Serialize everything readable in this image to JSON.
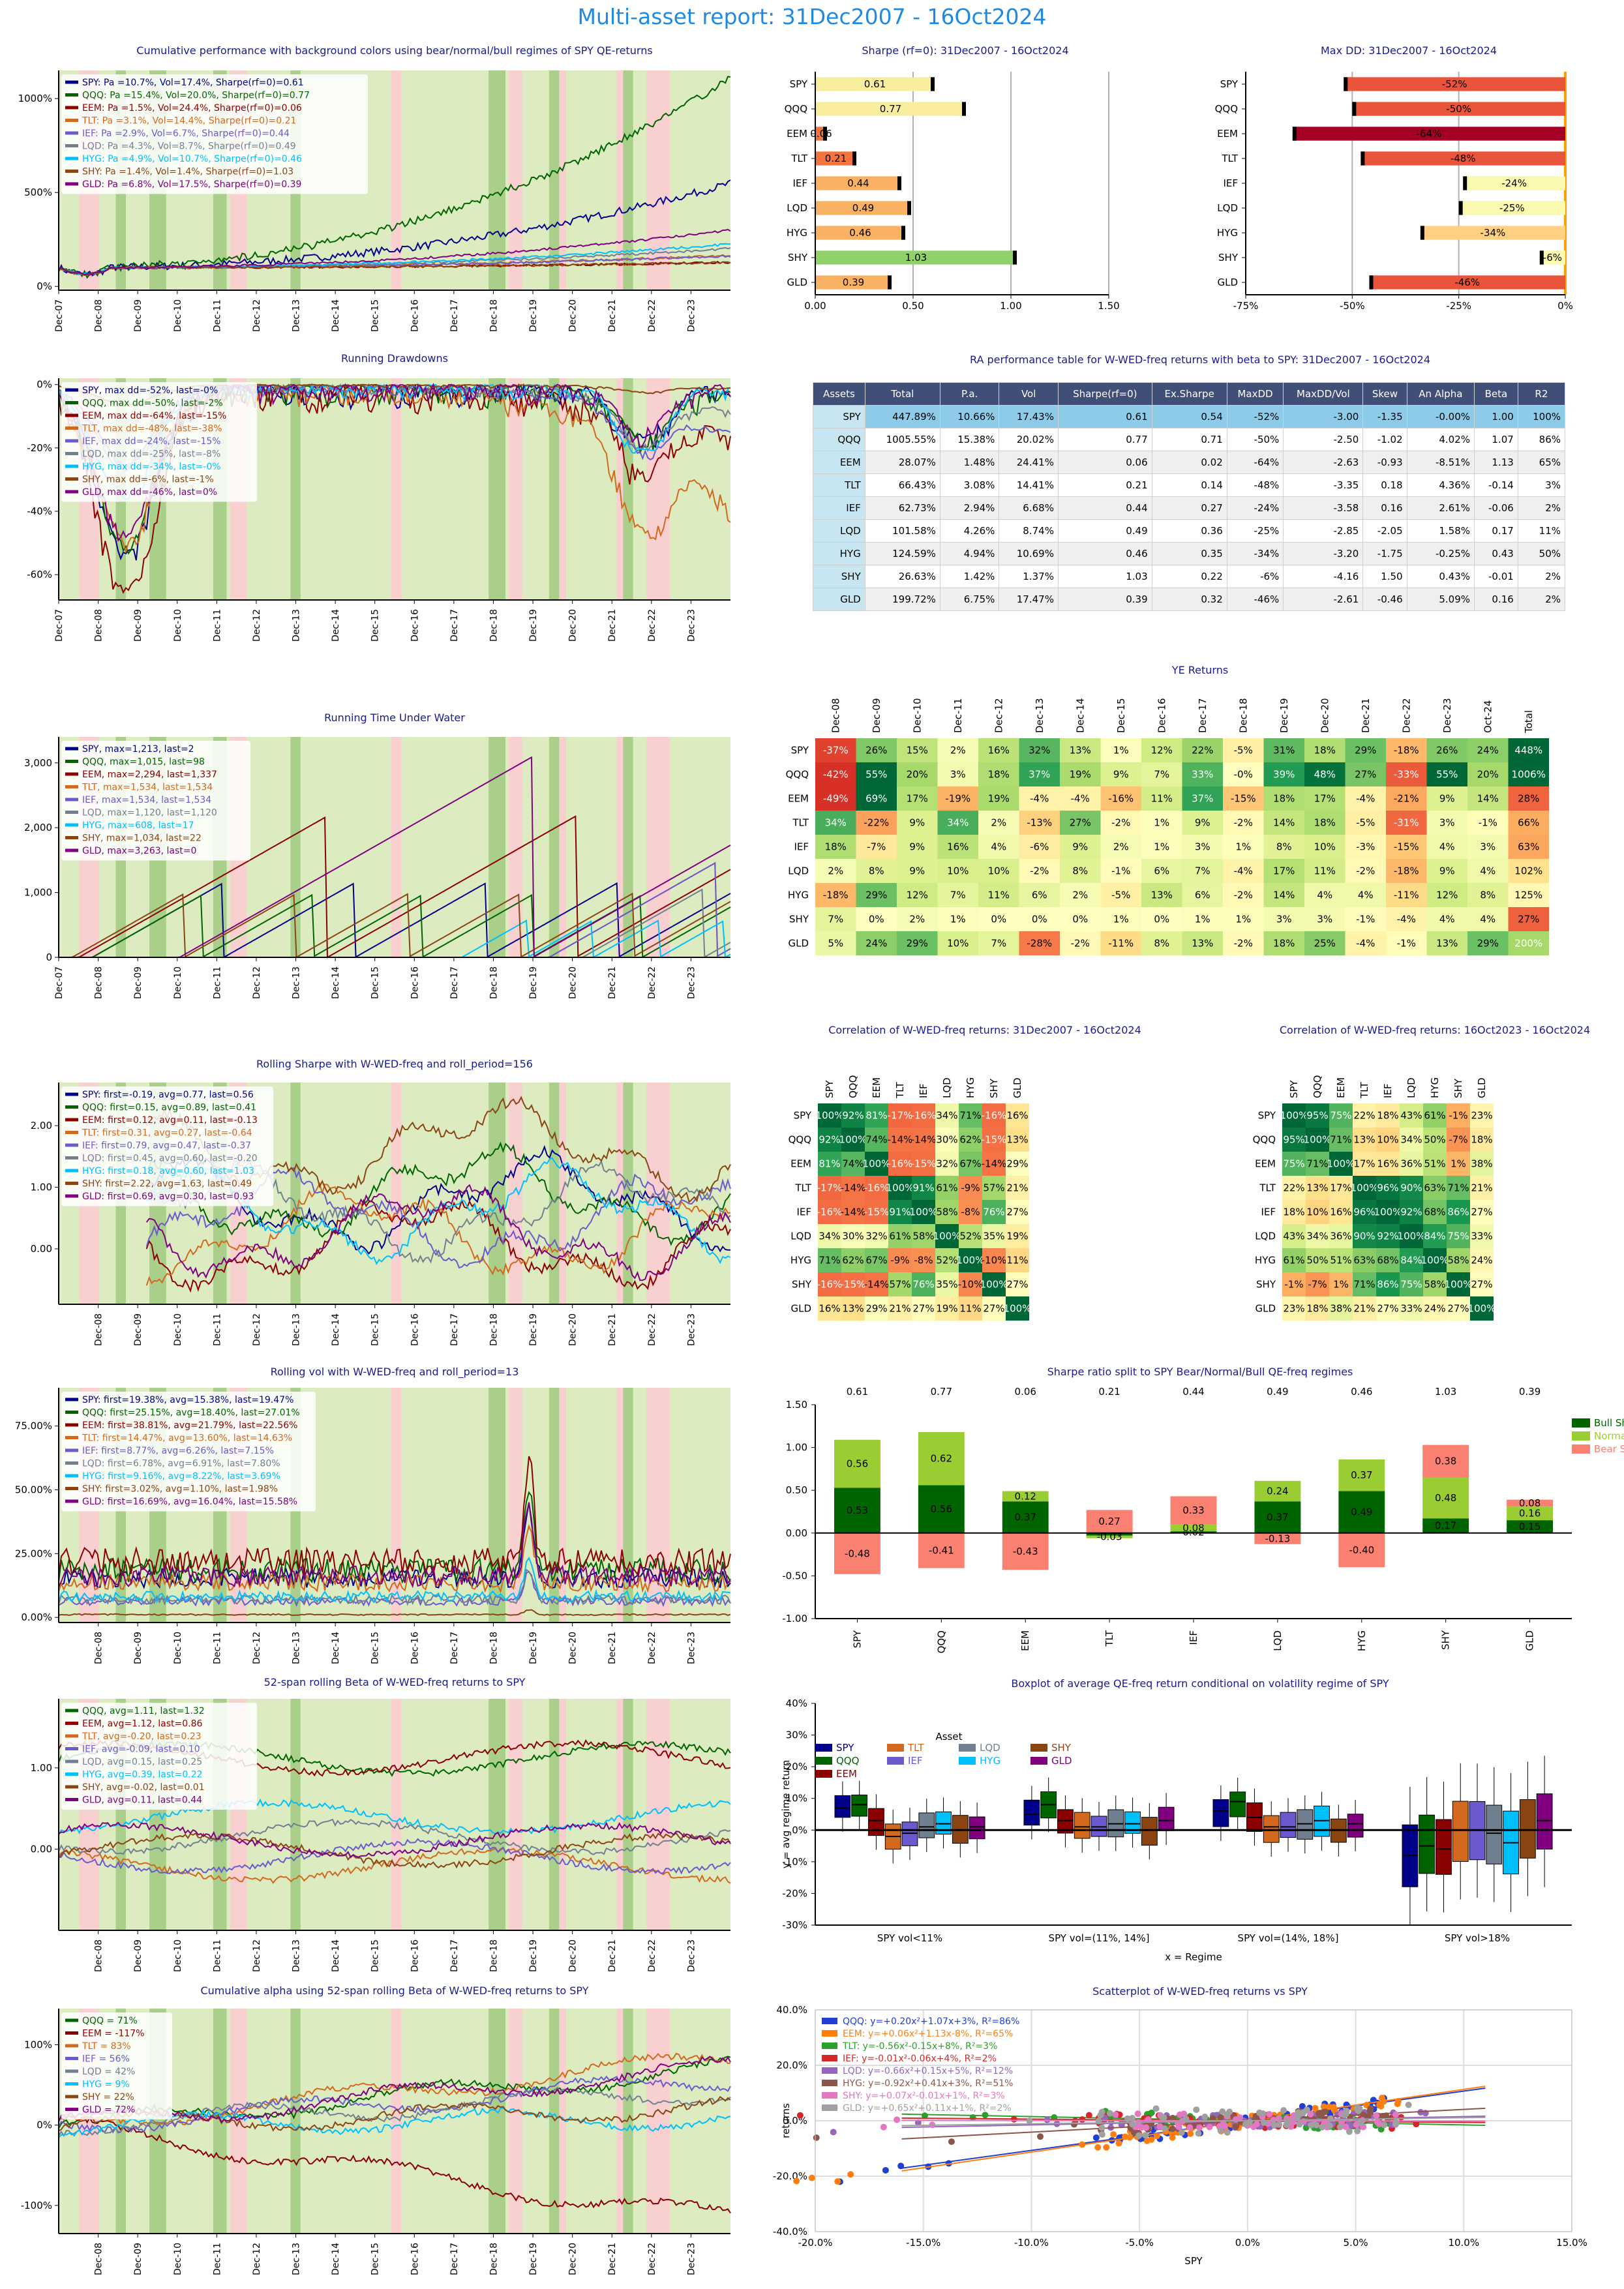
{
  "page_title": "Multi-asset report: 31Dec2007 - 16Oct2024",
  "assets": [
    "SPY",
    "QQQ",
    "EEM",
    "TLT",
    "IEF",
    "LQD",
    "HYG",
    "SHY",
    "GLD"
  ],
  "colors": {
    "SPY": "#00008b",
    "QQQ": "#006400",
    "EEM": "#8b0000",
    "TLT": "#d2691e",
    "IEF": "#6a5acd",
    "LQD": "#708090",
    "HYG": "#00bfff",
    "SHY": "#8b4513",
    "GLD": "#800080"
  },
  "regime_colors": {
    "bull": "#a9cf8a",
    "normal": "#dcecc0",
    "bear": "#f9d0d0"
  },
  "years": [
    "Dec-07",
    "Dec-08",
    "Dec-09",
    "Dec-10",
    "Dec-11",
    "Dec-12",
    "Dec-13",
    "Dec-14",
    "Dec-15",
    "Dec-16",
    "Dec-17",
    "Dec-18",
    "Dec-19",
    "Dec-20",
    "Dec-21",
    "Dec-22",
    "Dec-23"
  ],
  "chart_data": [
    {
      "id": "cumperf",
      "type": "line",
      "title": "Cumulative performance with background colors using bear/normal/bull regimes of SPY QE-returns",
      "yticks": [
        "0%",
        "500%",
        "1000%"
      ],
      "ylim": [
        -20,
        1150
      ],
      "legend": [
        "SPY: Pa =10.7%, Vol=17.4%, Sharpe(rf=0)=0.61",
        "QQQ: Pa =15.4%, Vol=20.0%, Sharpe(rf=0)=0.77",
        "EEM: Pa =1.5%, Vol=24.4%, Sharpe(rf=0)=0.06",
        "TLT: Pa =3.1%, Vol=14.4%, Sharpe(rf=0)=0.21",
        "IEF: Pa =2.9%, Vol=6.7%, Sharpe(rf=0)=0.44",
        "LQD: Pa =4.3%, Vol=8.7%, Sharpe(rf=0)=0.49",
        "HYG: Pa =4.9%, Vol=10.7%, Sharpe(rf=0)=0.46",
        "SHY: Pa =1.4%, Vol=1.4%, Sharpe(rf=0)=1.03",
        "GLD: Pa =6.8%, Vol=17.5%, Sharpe(rf=0)=0.39"
      ],
      "final": [
        548,
        1106,
        128,
        166,
        163,
        202,
        225,
        127,
        300
      ]
    },
    {
      "id": "sharpe",
      "type": "bar",
      "title": "Sharpe (rf=0): 31Dec2007 - 16Oct2024",
      "values": [
        0.61,
        0.77,
        0.06,
        0.21,
        0.44,
        0.49,
        0.46,
        1.03,
        0.39
      ],
      "labels": [
        "0.61",
        "0.77",
        "0.06",
        "0.21",
        "0.44",
        "0.49",
        "0.46",
        "1.03",
        "0.39"
      ],
      "xticks": [
        "0.00",
        "0.50",
        "1.00",
        "1.50"
      ],
      "xlim": [
        0,
        1.5
      ]
    },
    {
      "id": "maxdd",
      "type": "bar",
      "title": "Max DD: 31Dec2007 - 16Oct2024",
      "values": [
        -52,
        -50,
        -64,
        -48,
        -24,
        -25,
        -34,
        -6,
        -46
      ],
      "labels": [
        "-52%",
        "-50%",
        "-64%",
        "-48%",
        "-24%",
        "-25%",
        "-34%",
        "-6%",
        "-46%"
      ],
      "xticks": [
        "-75%",
        "-50%",
        "-25%",
        "0%"
      ],
      "xlim": [
        -75,
        0
      ]
    },
    {
      "id": "drawdowns",
      "type": "line",
      "title": "Running Drawdowns",
      "yticks": [
        "0%",
        "-20%",
        "-40%",
        "-60%"
      ],
      "ylim": [
        -68,
        2
      ],
      "legend": [
        "SPY, max dd=-52%, last=-0%",
        "QQQ, max dd=-50%, last=-2%",
        "EEM, max dd=-64%, last=-15%",
        "TLT, max dd=-48%, last=-38%",
        "IEF, max dd=-24%, last=-15%",
        "LQD, max dd=-25%, last=-8%",
        "HYG, max dd=-34%, last=-0%",
        "SHY, max dd=-6%, last=-1%",
        "GLD, max dd=-46%, last=0%"
      ],
      "maxdd": [
        -52,
        -50,
        -64,
        -48,
        -24,
        -25,
        -34,
        -6,
        -46
      ],
      "last": [
        0,
        -2,
        -15,
        -38,
        -15,
        -8,
        0,
        -1,
        0
      ]
    },
    {
      "id": "tuw",
      "type": "line",
      "title": "Running Time Under Water",
      "yticks": [
        "0",
        "1,000",
        "2,000",
        "3,000"
      ],
      "ylim": [
        0,
        3400
      ],
      "legend": [
        "SPY, max=1,213, last=2",
        "QQQ, max=1,015, last=98",
        "EEM, max=2,294, last=1,337",
        "TLT, max=1,534, last=1,534",
        "IEF, max=1,534, last=1,534",
        "LQD, max=1,120, last=1,120",
        "HYG, max=608, last=17",
        "SHY, max=1,034, last=22",
        "GLD, max=3,263, last=0"
      ]
    },
    {
      "id": "rollsharpe",
      "type": "line",
      "title": "Rolling Sharpe with W-WED-freq and roll_period=156",
      "yticks": [
        "0.00",
        "1.00",
        "2.00"
      ],
      "ylim": [
        -0.9,
        2.7
      ],
      "legend": [
        "SPY: first=-0.19, avg=0.77, last=0.56",
        "QQQ: first=0.15, avg=0.89, last=0.41",
        "EEM: first=0.12, avg=0.11, last=-0.13",
        "TLT: first=0.31, avg=0.27, last=-0.64",
        "IEF: first=0.79, avg=0.47, last=-0.37",
        "LQD: first=0.45, avg=0.60, last=-0.20",
        "HYG: first=0.18, avg=0.60, last=1.03",
        "SHY: first=2.22, avg=1.63, last=0.49",
        "GLD: first=0.69, avg=0.30, last=0.93"
      ]
    },
    {
      "id": "rollvol",
      "type": "line",
      "title": "Rolling vol with W-WED-freq and roll_period=13",
      "yticks": [
        "0.00%",
        "25.00%",
        "50.00%",
        "75.00%"
      ],
      "ylim": [
        -2,
        90
      ],
      "legend": [
        "SPY: first=19.38%, avg=15.38%, last=19.47%",
        "QQQ: first=25.15%, avg=18.40%, last=27.01%",
        "EEM: first=38.81%, avg=21.79%, last=22.56%",
        "TLT: first=14.47%, avg=13.60%, last=14.63%",
        "IEF: first=8.77%, avg=6.26%, last=7.15%",
        "LQD: first=6.78%, avg=6.91%, last=7.80%",
        "HYG: first=9.16%, avg=8.22%, last=3.69%",
        "SHY: first=3.02%, avg=1.10%, last=1.98%",
        "GLD: first=16.69%, avg=16.04%, last=15.58%"
      ]
    },
    {
      "id": "rollbeta",
      "type": "line",
      "title": "52-span rolling Beta of W-WED-freq returns to SPY",
      "yticks": [
        "0.00",
        "1.00"
      ],
      "ylim": [
        -1.0,
        1.85
      ],
      "legend": [
        "QQQ, avg=1.11, last=1.32",
        "EEM, avg=1.12, last=0.86",
        "TLT, avg=-0.20, last=0.23",
        "IEF, avg=-0.09, last=0.10",
        "LQD, avg=0.15, last=0.25",
        "HYG, avg=0.39, last=0.22",
        "SHY, avg=-0.02, last=0.01",
        "GLD, avg=0.11, last=0.44"
      ]
    },
    {
      "id": "cumalpha",
      "type": "line",
      "title": "Cumulative alpha using 52-span rolling Beta of W-WED-freq returns to SPY",
      "yticks": [
        "-100%",
        "0%",
        "100%"
      ],
      "ylim": [
        -135,
        145
      ],
      "legend": [
        "QQQ = 71%",
        "EEM = -117%",
        "TLT = 83%",
        "IEF = 56%",
        "LQD = 42%",
        "HYG = 9%",
        "SHY = 22%",
        "GLD = 72%"
      ]
    },
    {
      "id": "ye",
      "type": "heatmap",
      "title": "YE Returns",
      "cols": [
        "Dec-08",
        "Dec-09",
        "Dec-10",
        "Dec-11",
        "Dec-12",
        "Dec-13",
        "Dec-14",
        "Dec-15",
        "Dec-16",
        "Dec-17",
        "Dec-18",
        "Dec-19",
        "Dec-20",
        "Dec-21",
        "Dec-22",
        "Dec-23",
        "Oct-24",
        "Total"
      ],
      "rows": [
        [
          "-37%",
          "26%",
          "15%",
          "2%",
          "16%",
          "32%",
          "13%",
          "1%",
          "12%",
          "22%",
          "-5%",
          "31%",
          "18%",
          "29%",
          "-18%",
          "26%",
          "24%",
          "448%"
        ],
        [
          "-42%",
          "55%",
          "20%",
          "3%",
          "18%",
          "37%",
          "19%",
          "9%",
          "7%",
          "33%",
          "-0%",
          "39%",
          "48%",
          "27%",
          "-33%",
          "55%",
          "20%",
          "1006%"
        ],
        [
          "-49%",
          "69%",
          "17%",
          "-19%",
          "19%",
          "-4%",
          "-4%",
          "-16%",
          "11%",
          "37%",
          "-15%",
          "18%",
          "17%",
          "-4%",
          "-21%",
          "9%",
          "14%",
          "28%"
        ],
        [
          "34%",
          "-22%",
          "9%",
          "34%",
          "2%",
          "-13%",
          "27%",
          "-2%",
          "1%",
          "9%",
          "-2%",
          "14%",
          "18%",
          "-5%",
          "-31%",
          "3%",
          "-1%",
          "66%"
        ],
        [
          "18%",
          "-7%",
          "9%",
          "16%",
          "4%",
          "-6%",
          "9%",
          "2%",
          "1%",
          "3%",
          "1%",
          "8%",
          "10%",
          "-3%",
          "-15%",
          "4%",
          "3%",
          "63%"
        ],
        [
          "2%",
          "8%",
          "9%",
          "10%",
          "10%",
          "-2%",
          "8%",
          "-1%",
          "6%",
          "7%",
          "-4%",
          "17%",
          "11%",
          "-2%",
          "-18%",
          "9%",
          "4%",
          "102%"
        ],
        [
          "-18%",
          "29%",
          "12%",
          "7%",
          "11%",
          "6%",
          "2%",
          "-5%",
          "13%",
          "6%",
          "-2%",
          "14%",
          "4%",
          "4%",
          "-11%",
          "12%",
          "8%",
          "125%"
        ],
        [
          "7%",
          "0%",
          "2%",
          "1%",
          "0%",
          "0%",
          "0%",
          "1%",
          "0%",
          "1%",
          "1%",
          "3%",
          "3%",
          "-1%",
          "-4%",
          "4%",
          "4%",
          "27%"
        ],
        [
          "5%",
          "24%",
          "29%",
          "10%",
          "7%",
          "-28%",
          "-2%",
          "-11%",
          "8%",
          "13%",
          "-2%",
          "18%",
          "25%",
          "-4%",
          "-1%",
          "13%",
          "29%",
          "200%"
        ]
      ]
    },
    {
      "id": "corr1",
      "type": "heatmap",
      "title": "Correlation of W-WED-freq returns: 31Dec2007 - 16Oct2024",
      "rows": [
        [
          "100%",
          "92%",
          "81%",
          "-17%",
          "-16%",
          "34%",
          "71%",
          "-16%",
          "16%"
        ],
        [
          "92%",
          "100%",
          "74%",
          "-14%",
          "-14%",
          "30%",
          "62%",
          "-15%",
          "13%"
        ],
        [
          "81%",
          "74%",
          "100%",
          "-16%",
          "-15%",
          "32%",
          "67%",
          "-14%",
          "29%"
        ],
        [
          "-17%",
          "-14%",
          "-16%",
          "100%",
          "91%",
          "61%",
          "-9%",
          "57%",
          "21%"
        ],
        [
          "-16%",
          "-14%",
          "-15%",
          "91%",
          "100%",
          "58%",
          "-8%",
          "76%",
          "27%"
        ],
        [
          "34%",
          "30%",
          "32%",
          "61%",
          "58%",
          "100%",
          "52%",
          "35%",
          "19%"
        ],
        [
          "71%",
          "62%",
          "67%",
          "-9%",
          "-8%",
          "52%",
          "100%",
          "-10%",
          "11%"
        ],
        [
          "-16%",
          "-15%",
          "-14%",
          "57%",
          "76%",
          "35%",
          "-10%",
          "100%",
          "27%"
        ],
        [
          "16%",
          "13%",
          "29%",
          "21%",
          "27%",
          "19%",
          "11%",
          "27%",
          "100%"
        ]
      ]
    },
    {
      "id": "corr2",
      "type": "heatmap",
      "title": "Correlation of W-WED-freq returns: 16Oct2023 - 16Oct2024",
      "rows": [
        [
          "100%",
          "95%",
          "75%",
          "22%",
          "18%",
          "43%",
          "61%",
          "-1%",
          "23%"
        ],
        [
          "95%",
          "100%",
          "71%",
          "13%",
          "10%",
          "34%",
          "50%",
          "-7%",
          "18%"
        ],
        [
          "75%",
          "71%",
          "100%",
          "17%",
          "16%",
          "36%",
          "51%",
          "1%",
          "38%"
        ],
        [
          "22%",
          "13%",
          "17%",
          "100%",
          "96%",
          "90%",
          "63%",
          "71%",
          "21%"
        ],
        [
          "18%",
          "10%",
          "16%",
          "96%",
          "100%",
          "92%",
          "68%",
          "86%",
          "27%"
        ],
        [
          "43%",
          "34%",
          "36%",
          "90%",
          "92%",
          "100%",
          "84%",
          "75%",
          "33%"
        ],
        [
          "61%",
          "50%",
          "51%",
          "63%",
          "68%",
          "84%",
          "100%",
          "58%",
          "24%"
        ],
        [
          "-1%",
          "-7%",
          "1%",
          "71%",
          "86%",
          "75%",
          "58%",
          "100%",
          "27%"
        ],
        [
          "23%",
          "18%",
          "38%",
          "21%",
          "27%",
          "33%",
          "24%",
          "27%",
          "100%"
        ]
      ]
    },
    {
      "id": "split",
      "type": "bar",
      "title": "Sharpe ratio split to SPY Bear/Normal/Bull QE-freq regimes",
      "yticks": [
        "-1.00",
        "-0.50",
        "0.00",
        "0.50",
        "1.00",
        "1.50"
      ],
      "ylim": [
        -1,
        1.5
      ],
      "totals": [
        "0.61",
        "0.77",
        "0.06",
        "0.21",
        "0.44",
        "0.49",
        "0.46",
        "1.03",
        "0.39"
      ],
      "series": [
        {
          "name": "Bull Sharpe",
          "values": [
            0.53,
            0.56,
            0.37,
            -0.03,
            0.02,
            0.37,
            0.49,
            0.17,
            0.15
          ]
        },
        {
          "name": "Normal Sharpe",
          "values": [
            0.56,
            0.62,
            0.12,
            -0.03,
            0.08,
            0.24,
            0.37,
            0.48,
            0.16
          ]
        },
        {
          "name": "Bear Sharpe",
          "values": [
            -0.48,
            -0.41,
            -0.43,
            0.27,
            0.33,
            -0.13,
            -0.4,
            0.38,
            0.08
          ]
        }
      ]
    },
    {
      "id": "boxplot",
      "type": "box",
      "title": "Boxplot of average QE-freq return conditional on volatility regime of SPY",
      "categories": [
        "SPY vol<11%",
        "SPY vol=(11%, 14%]",
        "SPY vol=(14%, 18%]",
        "SPY vol>18%"
      ],
      "xlabel": "x = Regime",
      "ylabel": "y = avg regime return",
      "legend_title": "Asset",
      "yticks": [
        "-30%",
        "-20%",
        "-10%",
        "0%",
        "10%",
        "20%",
        "30%",
        "40%"
      ],
      "ylim": [
        -30,
        40
      ],
      "medians": [
        [
          7,
          8,
          3,
          -2,
          -1,
          1,
          2,
          0,
          1
        ],
        [
          5,
          8,
          3,
          1,
          1,
          2,
          2,
          0,
          3
        ],
        [
          6,
          9,
          4,
          1,
          1,
          2,
          3,
          0,
          2
        ],
        [
          -8,
          -5,
          -6,
          0,
          0,
          -1,
          -4,
          0,
          3
        ]
      ]
    },
    {
      "id": "scatter",
      "type": "scatter",
      "title": "Scatterplot of W-WED-freq returns vs SPY",
      "xlabel": "SPY",
      "ylabel": "returns",
      "xticks": [
        "-20.0%",
        "-15.0%",
        "-10.0%",
        "-5.0%",
        "0.0%",
        "5.0%",
        "10.0%",
        "15.0%"
      ],
      "yticks": [
        "-40.0%",
        "-20.0%",
        "0.0%",
        "20.0%",
        "40.0%"
      ],
      "xlim": [
        -20,
        15
      ],
      "ylim": [
        -40,
        40
      ],
      "legend": [
        "QQQ: y=+0.20x²+1.07x+3%, R²=86%",
        "EEM: y=+0.06x²+1.13x-8%, R²=65%",
        "TLT: y=-0.56x²-0.15x+8%, R²=3%",
        "IEF: y=-0.01x²-0.06x+4%, R²=2%",
        "LQD: y=-0.66x²+0.15x+5%, R²=12%",
        "HYG: y=-0.92x²+0.41x+3%, R²=51%",
        "SHY: y=+0.07x²-0.01x+1%, R²=3%",
        "GLD: y=+0.65x²+0.11x+1%, R²=2%"
      ],
      "colors": [
        "#1f3fd6",
        "#ff7f0e",
        "#2ca02c",
        "#d62728",
        "#9467bd",
        "#8c564b",
        "#e377c2",
        "#a0a0a0"
      ]
    }
  ]
}
